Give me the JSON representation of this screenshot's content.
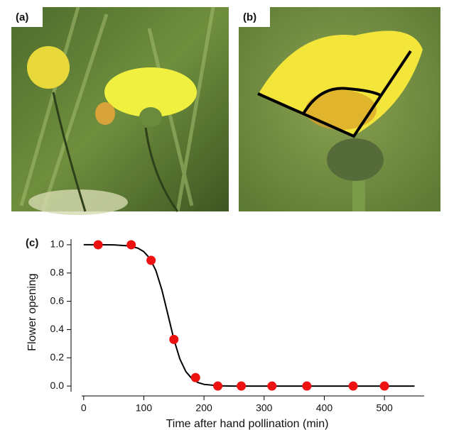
{
  "panels": {
    "a": "(a)",
    "b": "(b)",
    "c": "(c)"
  },
  "chart_data": {
    "type": "scatter",
    "xlabel": "Time after hand pollination (min)",
    "ylabel": "Flower opening",
    "xlim": [
      -21,
      566
    ],
    "ylim": [
      -0.07,
      1.06
    ],
    "xticks": [
      0,
      100,
      200,
      300,
      400,
      500
    ],
    "yticks": [
      {
        "value": 0,
        "label": "0.0"
      },
      0.2,
      0.4,
      0.6,
      0.8,
      {
        "value": 1,
        "label": "1.0"
      }
    ],
    "x": [
      24,
      79,
      112,
      150,
      186,
      223,
      262,
      313,
      371,
      448,
      500
    ],
    "values": [
      1.0,
      1.0,
      0.89,
      0.33,
      0.06,
      0,
      0,
      0,
      0,
      0,
      0
    ],
    "color": "#ee1111",
    "fit": {
      "color": "#000000",
      "x": [
        0,
        25,
        50,
        75,
        90,
        100,
        110,
        120,
        130,
        140,
        150,
        160,
        170,
        180,
        190,
        200,
        225,
        250,
        300,
        400,
        550
      ],
      "values": [
        1.0,
        1.0,
        0.999,
        0.992,
        0.976,
        0.951,
        0.904,
        0.818,
        0.682,
        0.507,
        0.33,
        0.191,
        0.102,
        0.052,
        0.025,
        0.012,
        0.002,
        0,
        0,
        0,
        0
      ]
    }
  }
}
